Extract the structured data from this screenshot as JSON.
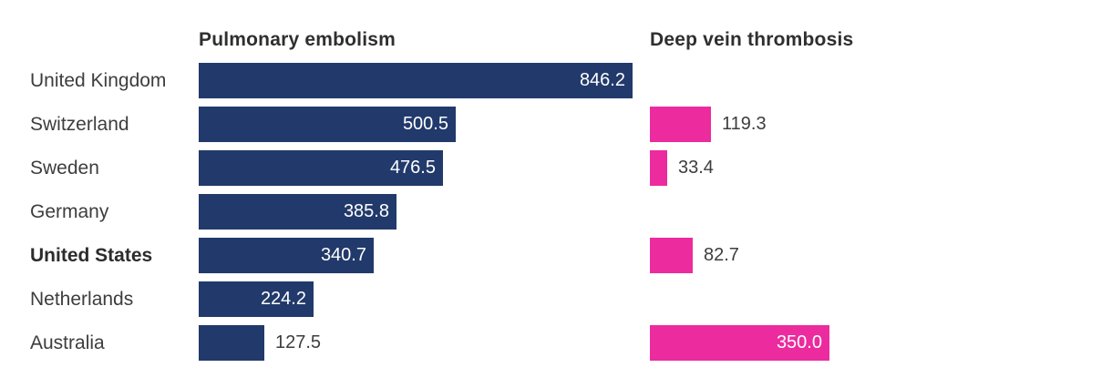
{
  "chart_data": {
    "type": "bar",
    "orientation": "horizontal",
    "categories": [
      "United Kingdom",
      "Switzerland",
      "Sweden",
      "Germany",
      "United States",
      "Netherlands",
      "Australia"
    ],
    "highlight_category": "United States",
    "series": [
      {
        "name": "Pulmonary embolism",
        "color": "#213a6b",
        "values": [
          846.2,
          500.5,
          476.5,
          385.8,
          340.7,
          224.2,
          127.5
        ]
      },
      {
        "name": "Deep vein thrombosis",
        "color": "#ec2b9e",
        "values": [
          null,
          119.3,
          33.4,
          null,
          82.7,
          null,
          350.0
        ]
      }
    ],
    "value_label_format": "one_decimal",
    "xlim": [
      0,
      880
    ],
    "grid": false,
    "axes_visible": false,
    "legend_position": "column headers above each panel",
    "colors": {
      "pulmonary_embolism_bar": "#213a6b",
      "deep_vein_thrombosis_bar": "#ec2b9e",
      "category_text": "#3d3d3d",
      "header_text": "#2f2f2f",
      "value_inside_text": "#ffffff",
      "value_outside_text": "#3d3d3d",
      "background": "#ffffff"
    }
  }
}
